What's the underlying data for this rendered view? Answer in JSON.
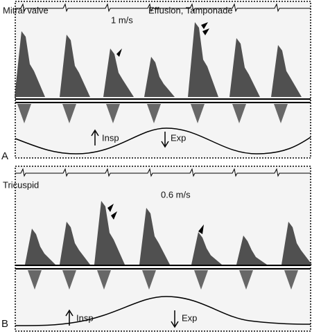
{
  "panels": [
    {
      "label": "A",
      "titles": [
        "Mitral valve",
        "Effusion, Tamponade"
      ],
      "scale": "1 m/s",
      "insp": "Insp",
      "exp": "Exp"
    },
    {
      "label": "B",
      "titles": [
        "Tricuspid"
      ],
      "scale": "0.6 m/s",
      "insp": "Insp",
      "exp": "Exp"
    }
  ]
}
